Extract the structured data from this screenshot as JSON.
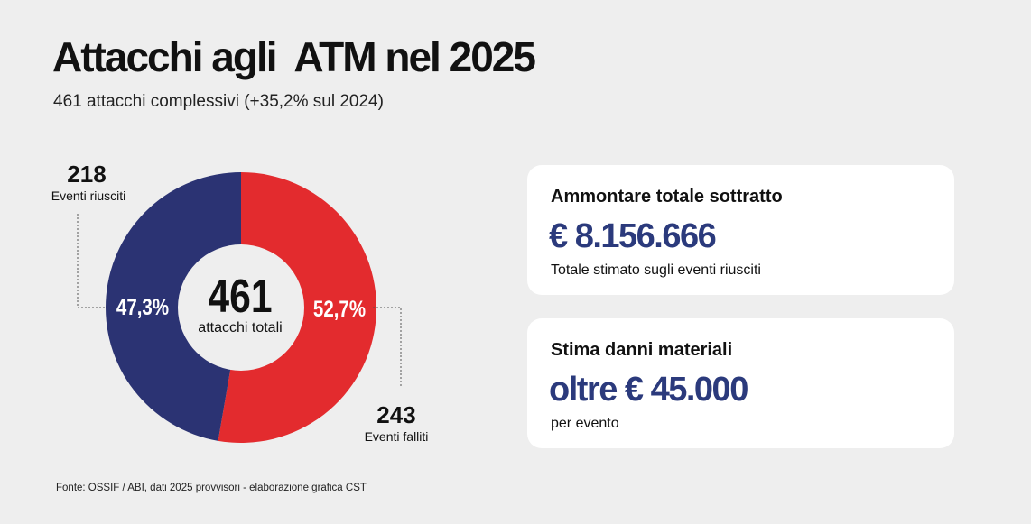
{
  "header": {
    "title": "Attacchi agli  ATM nel 2025",
    "subtitle": "461 attacchi complessivi (+35,2% sul 2024)"
  },
  "chart_data": {
    "type": "pie",
    "center_value": "461",
    "center_label": "attacchi totali",
    "slices": [
      {
        "label": "Eventi falliti",
        "value": 243,
        "value_label": "243",
        "percent_label": "52,7%",
        "color": "#e32b2e"
      },
      {
        "label": "Eventi riusciti",
        "value": 218,
        "value_label": "218",
        "percent_label": "47,3%",
        "color": "#2b3373"
      }
    ]
  },
  "cards": [
    {
      "label": "Ammontare totale sottratto",
      "value": "€ 8.156.666",
      "note": "Totale stimato sugli eventi riusciti"
    },
    {
      "label": "Stima danni materiali",
      "value": "oltre € 45.000",
      "note": "per evento"
    }
  ],
  "footer": {
    "source": "Fonte: OSSIF / ABI, dati 2025 provvisori - elaborazione grafica CST"
  },
  "colors": {
    "background": "#eeeeee",
    "accent_blue": "#2b3a7c",
    "card_bg": "#ffffff"
  }
}
